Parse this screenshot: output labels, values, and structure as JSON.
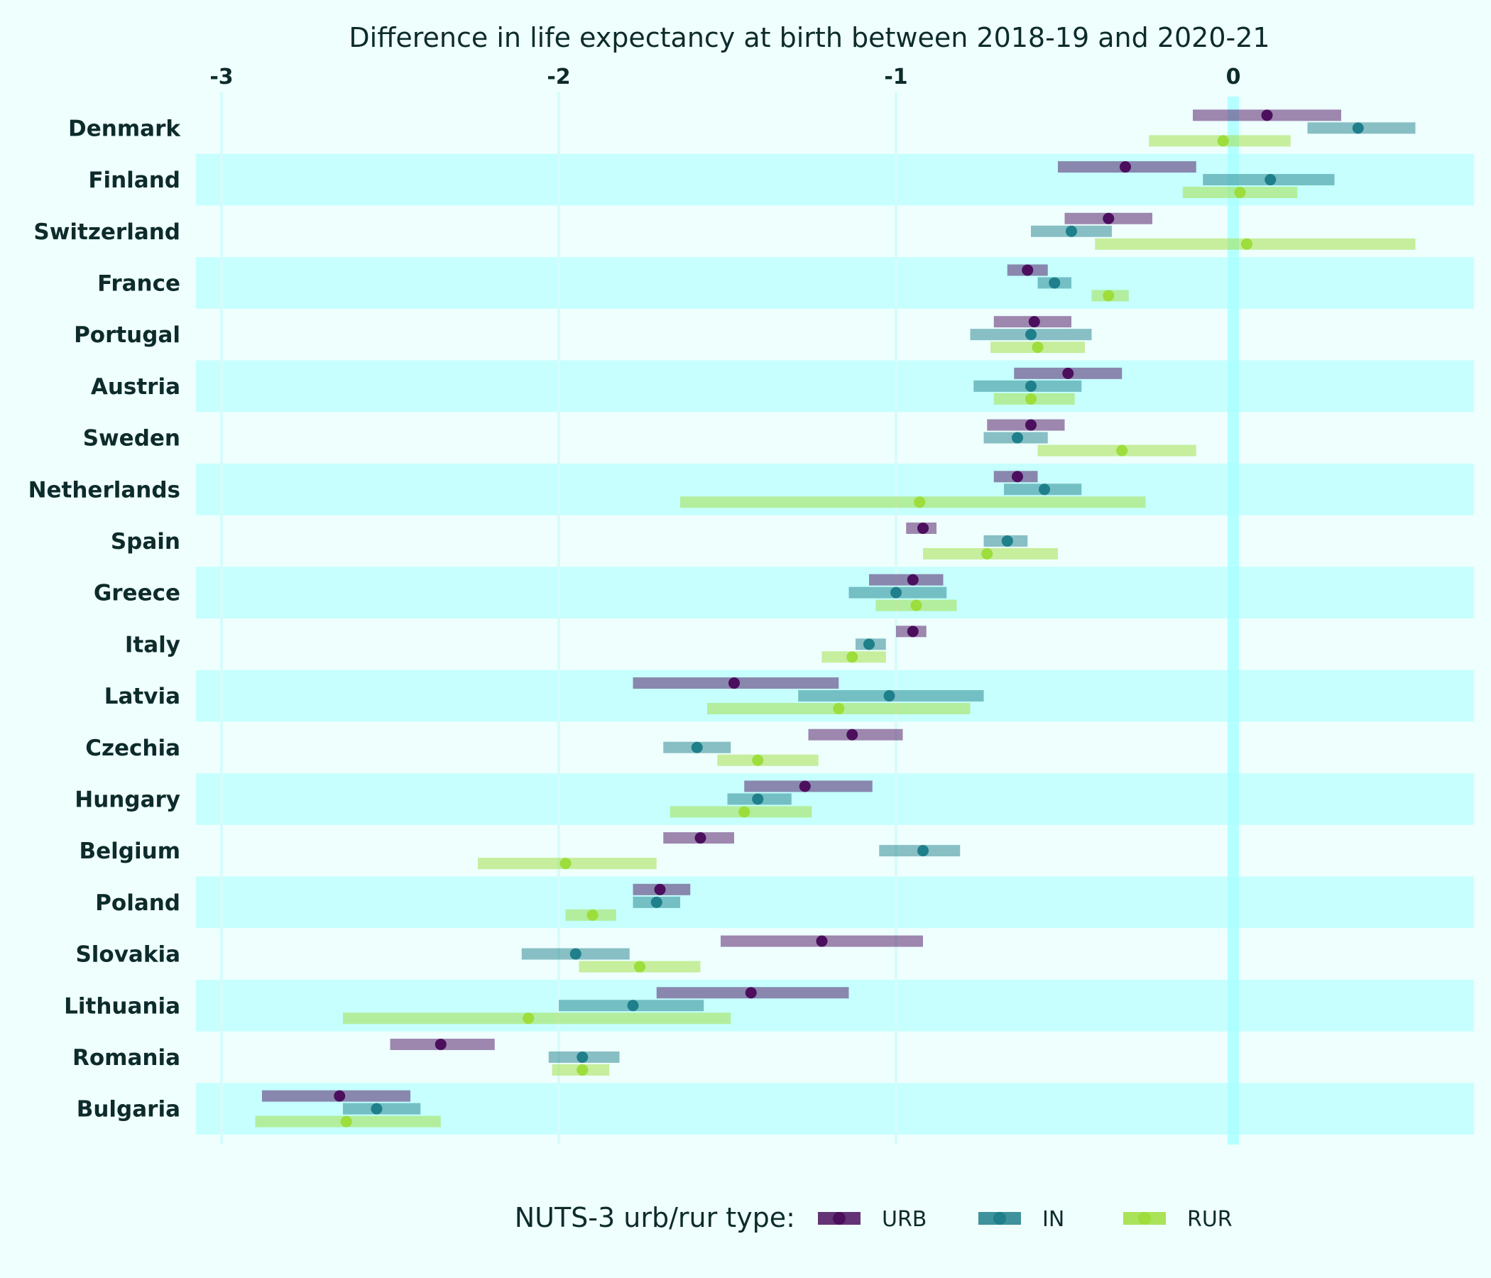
{
  "chart_data": {
    "type": "range-dot",
    "title": "Difference in life expectancy at birth between 2018-19 and 2020-21",
    "xlim": [
      -3.05,
      0.72
    ],
    "x_ticks": [
      -3,
      -2,
      -1,
      0
    ],
    "x_tick_labels": [
      "-3",
      "-2",
      "-1",
      "0"
    ],
    "grid": true,
    "legend_position": "bottom",
    "legend_title": "NUTS-3 urb/rur type:",
    "series": [
      {
        "name": "URB",
        "color": "#4b0f5e"
      },
      {
        "name": "IN",
        "color": "#1f7f8a"
      },
      {
        "name": "RUR",
        "color": "#9ddd3c"
      }
    ],
    "countries": [
      {
        "name": "Denmark",
        "values": [
          {
            "series": "URB",
            "point": 0.1,
            "min": -0.12,
            "max": 0.32
          },
          {
            "series": "IN",
            "point": 0.37,
            "min": 0.22,
            "max": 0.54
          },
          {
            "series": "RUR",
            "point": -0.03,
            "min": -0.25,
            "max": 0.17
          }
        ]
      },
      {
        "name": "Finland",
        "values": [
          {
            "series": "URB",
            "point": -0.32,
            "min": -0.52,
            "max": -0.11
          },
          {
            "series": "IN",
            "point": 0.11,
            "min": -0.09,
            "max": 0.3
          },
          {
            "series": "RUR",
            "point": 0.02,
            "min": -0.15,
            "max": 0.19
          }
        ]
      },
      {
        "name": "Switzerland",
        "values": [
          {
            "series": "URB",
            "point": -0.37,
            "min": -0.5,
            "max": -0.24
          },
          {
            "series": "IN",
            "point": -0.48,
            "min": -0.6,
            "max": -0.36
          },
          {
            "series": "RUR",
            "point": 0.04,
            "min": -0.41,
            "max": 0.54
          }
        ]
      },
      {
        "name": "France",
        "values": [
          {
            "series": "URB",
            "point": -0.61,
            "min": -0.67,
            "max": -0.55
          },
          {
            "series": "IN",
            "point": -0.53,
            "min": -0.58,
            "max": -0.48
          },
          {
            "series": "RUR",
            "point": -0.37,
            "min": -0.42,
            "max": -0.31
          }
        ]
      },
      {
        "name": "Portugal",
        "values": [
          {
            "series": "URB",
            "point": -0.59,
            "min": -0.71,
            "max": -0.48
          },
          {
            "series": "IN",
            "point": -0.6,
            "min": -0.78,
            "max": -0.42
          },
          {
            "series": "RUR",
            "point": -0.58,
            "min": -0.72,
            "max": -0.44
          }
        ]
      },
      {
        "name": "Austria",
        "values": [
          {
            "series": "URB",
            "point": -0.49,
            "min": -0.65,
            "max": -0.33
          },
          {
            "series": "IN",
            "point": -0.6,
            "min": -0.77,
            "max": -0.45
          },
          {
            "series": "RUR",
            "point": -0.6,
            "min": -0.71,
            "max": -0.47
          }
        ]
      },
      {
        "name": "Sweden",
        "values": [
          {
            "series": "URB",
            "point": -0.6,
            "min": -0.73,
            "max": -0.5
          },
          {
            "series": "IN",
            "point": -0.64,
            "min": -0.74,
            "max": -0.55
          },
          {
            "series": "RUR",
            "point": -0.33,
            "min": -0.58,
            "max": -0.11
          }
        ]
      },
      {
        "name": "Netherlands",
        "values": [
          {
            "series": "URB",
            "point": -0.64,
            "min": -0.71,
            "max": -0.58
          },
          {
            "series": "IN",
            "point": -0.56,
            "min": -0.68,
            "max": -0.45
          },
          {
            "series": "RUR",
            "point": -0.93,
            "min": -1.64,
            "max": -0.26
          }
        ]
      },
      {
        "name": "Spain",
        "values": [
          {
            "series": "URB",
            "point": -0.92,
            "min": -0.97,
            "max": -0.88
          },
          {
            "series": "IN",
            "point": -0.67,
            "min": -0.74,
            "max": -0.61
          },
          {
            "series": "RUR",
            "point": -0.73,
            "min": -0.92,
            "max": -0.52
          }
        ]
      },
      {
        "name": "Greece",
        "values": [
          {
            "series": "URB",
            "point": -0.95,
            "min": -1.08,
            "max": -0.86
          },
          {
            "series": "IN",
            "point": -1.0,
            "min": -1.14,
            "max": -0.85
          },
          {
            "series": "RUR",
            "point": -0.94,
            "min": -1.06,
            "max": -0.82
          }
        ]
      },
      {
        "name": "Italy",
        "values": [
          {
            "series": "URB",
            "point": -0.95,
            "min": -1.0,
            "max": -0.91
          },
          {
            "series": "IN",
            "point": -1.08,
            "min": -1.12,
            "max": -1.03
          },
          {
            "series": "RUR",
            "point": -1.13,
            "min": -1.22,
            "max": -1.03
          }
        ]
      },
      {
        "name": "Latvia",
        "values": [
          {
            "series": "URB",
            "point": -1.48,
            "min": -1.78,
            "max": -1.17
          },
          {
            "series": "IN",
            "point": -1.02,
            "min": -1.29,
            "max": -0.74
          },
          {
            "series": "RUR",
            "point": -1.17,
            "min": -1.56,
            "max": -0.78
          }
        ]
      },
      {
        "name": "Czechia",
        "values": [
          {
            "series": "URB",
            "point": -1.13,
            "min": -1.26,
            "max": -0.98
          },
          {
            "series": "IN",
            "point": -1.59,
            "min": -1.69,
            "max": -1.49
          },
          {
            "series": "RUR",
            "point": -1.41,
            "min": -1.53,
            "max": -1.23
          }
        ]
      },
      {
        "name": "Hungary",
        "values": [
          {
            "series": "URB",
            "point": -1.27,
            "min": -1.45,
            "max": -1.07
          },
          {
            "series": "IN",
            "point": -1.41,
            "min": -1.5,
            "max": -1.31
          },
          {
            "series": "RUR",
            "point": -1.45,
            "min": -1.67,
            "max": -1.25
          }
        ]
      },
      {
        "name": "Belgium",
        "values": [
          {
            "series": "URB",
            "point": -1.58,
            "min": -1.69,
            "max": -1.48
          },
          {
            "series": "IN",
            "point": -0.92,
            "min": -1.05,
            "max": -0.81
          },
          {
            "series": "RUR",
            "point": -1.98,
            "min": -2.24,
            "max": -1.71
          }
        ]
      },
      {
        "name": "Poland",
        "values": [
          {
            "series": "URB",
            "point": -1.7,
            "min": -1.78,
            "max": -1.61
          },
          {
            "series": "IN",
            "point": -1.71,
            "min": -1.78,
            "max": -1.64
          },
          {
            "series": "RUR",
            "point": -1.9,
            "min": -1.98,
            "max": -1.83
          }
        ]
      },
      {
        "name": "Slovakia",
        "values": [
          {
            "series": "URB",
            "point": -1.22,
            "min": -1.52,
            "max": -0.92
          },
          {
            "series": "IN",
            "point": -1.95,
            "min": -2.11,
            "max": -1.79
          },
          {
            "series": "RUR",
            "point": -1.76,
            "min": -1.94,
            "max": -1.58
          }
        ]
      },
      {
        "name": "Lithuania",
        "values": [
          {
            "series": "URB",
            "point": -1.43,
            "min": -1.71,
            "max": -1.14
          },
          {
            "series": "IN",
            "point": -1.78,
            "min": -2.0,
            "max": -1.57
          },
          {
            "series": "RUR",
            "point": -2.09,
            "min": -2.64,
            "max": -1.49
          }
        ]
      },
      {
        "name": "Romania",
        "values": [
          {
            "series": "URB",
            "point": -2.35,
            "min": -2.5,
            "max": -2.19
          },
          {
            "series": "IN",
            "point": -1.93,
            "min": -2.03,
            "max": -1.82
          },
          {
            "series": "RUR",
            "point": -1.93,
            "min": -2.02,
            "max": -1.85
          }
        ]
      },
      {
        "name": "Bulgaria",
        "values": [
          {
            "series": "URB",
            "point": -2.65,
            "min": -2.88,
            "max": -2.44
          },
          {
            "series": "IN",
            "point": -2.54,
            "min": -2.64,
            "max": -2.41
          },
          {
            "series": "RUR",
            "point": -2.63,
            "min": -2.9,
            "max": -2.35
          }
        ]
      }
    ]
  }
}
